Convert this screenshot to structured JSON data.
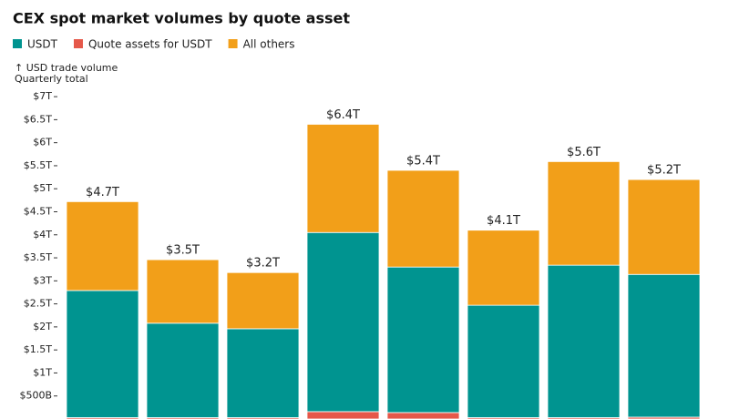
{
  "chart_data": {
    "type": "stacked_bar",
    "title": "CEX spot market volumes by quote asset",
    "ylabel": "↑ USD trade volume",
    "ylabel_note": "Quarterly total",
    "categories": [
      null,
      null,
      null,
      null,
      null,
      null,
      null,
      null
    ],
    "series": [
      {
        "name": "USDT",
        "color": "#009490",
        "values": [
          2.76,
          2.05,
          1.93,
          3.89,
          3.16,
          2.44,
          3.31,
          3.1
        ]
      },
      {
        "name": "Quote assets for USDT",
        "color": "#e5584a",
        "values": [
          0.03,
          0.03,
          0.03,
          0.16,
          0.14,
          0.03,
          0.03,
          0.04
        ]
      },
      {
        "name": "All others",
        "color": "#f29f19",
        "values": [
          1.93,
          1.38,
          1.22,
          2.35,
          2.1,
          1.63,
          2.25,
          2.06
        ]
      }
    ],
    "stack_order": [
      1,
      0,
      2
    ],
    "totals": {
      "values": [
        4.72,
        3.46,
        3.18,
        6.4,
        5.4,
        4.1,
        5.59,
        5.2
      ],
      "value_labels": [
        "$4.7T",
        "$3.5T",
        "$3.2T",
        "$6.4T",
        "$5.4T",
        "$4.1T",
        "$5.6T",
        "$5.2T"
      ]
    },
    "ylim": [
      0,
      7.2
    ],
    "yticks": [
      {
        "value": 0.5,
        "label": "$500B"
      },
      {
        "value": 1,
        "label": "$1T"
      },
      {
        "value": 1.5,
        "label": "$1.5T"
      },
      {
        "value": 2,
        "label": "$2T"
      },
      {
        "value": 2.5,
        "label": "$2.5T"
      },
      {
        "value": 3,
        "label": "$3T"
      },
      {
        "value": 3.5,
        "label": "$3.5T"
      },
      {
        "value": 4,
        "label": "$4T"
      },
      {
        "value": 4.5,
        "label": "$4.5T"
      },
      {
        "value": 5,
        "label": "$5T"
      },
      {
        "value": 5.5,
        "label": "$5.5T"
      },
      {
        "value": 6,
        "label": "$6T"
      },
      {
        "value": 6.5,
        "label": "$6.5T"
      },
      {
        "value": 7,
        "label": "$7T"
      }
    ],
    "grid": false
  }
}
